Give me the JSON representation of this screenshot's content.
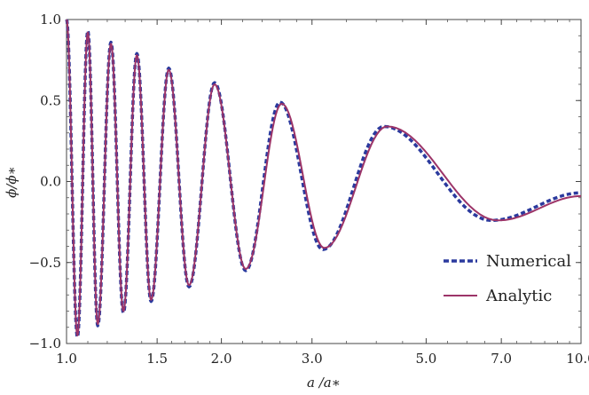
{
  "chart_data": {
    "type": "line",
    "xscale": "log",
    "xlim": [
      1.0,
      10.0
    ],
    "ylim": [
      -1.0,
      1.0
    ],
    "xlabel": "a /a∗",
    "ylabel": "ϕ/ϕ∗",
    "xticks": [
      "1.0",
      "1.5",
      "2.0",
      "3.0",
      "5.0",
      "7.0",
      "10.0"
    ],
    "yticks": [
      "1.0",
      "0.5",
      "0.0",
      "−0.5",
      "−1.0"
    ],
    "legend_position": "bottom-right",
    "series": [
      {
        "name": "Numerical",
        "style": "dashed",
        "color": "#2b3a9e",
        "points": [
          [
            1.0,
            1.0
          ],
          [
            1.05,
            -0.96
          ],
          [
            1.1,
            0.93
          ],
          [
            1.15,
            -0.89
          ],
          [
            1.22,
            0.86
          ],
          [
            1.29,
            -0.81
          ],
          [
            1.37,
            0.79
          ],
          [
            1.46,
            -0.74
          ],
          [
            1.58,
            0.7
          ],
          [
            1.73,
            -0.65
          ],
          [
            1.94,
            0.61
          ],
          [
            2.23,
            -0.55
          ],
          [
            2.6,
            0.49
          ],
          [
            3.15,
            -0.42
          ],
          [
            4.14,
            0.34
          ],
          [
            6.7,
            -0.24
          ],
          [
            10.0,
            -0.07
          ]
        ]
      },
      {
        "name": "Analytic",
        "style": "solid",
        "color": "#9c3468",
        "points": [
          [
            1.0,
            1.0
          ],
          [
            1.05,
            -0.95
          ],
          [
            1.1,
            0.92
          ],
          [
            1.15,
            -0.88
          ],
          [
            1.22,
            0.85
          ],
          [
            1.29,
            -0.8
          ],
          [
            1.37,
            0.78
          ],
          [
            1.46,
            -0.73
          ],
          [
            1.58,
            0.69
          ],
          [
            1.73,
            -0.64
          ],
          [
            1.94,
            0.6
          ],
          [
            2.23,
            -0.54
          ],
          [
            2.62,
            0.48
          ],
          [
            3.17,
            -0.41
          ],
          [
            4.2,
            0.34
          ],
          [
            6.9,
            -0.24
          ],
          [
            10.0,
            -0.09
          ]
        ]
      }
    ]
  }
}
